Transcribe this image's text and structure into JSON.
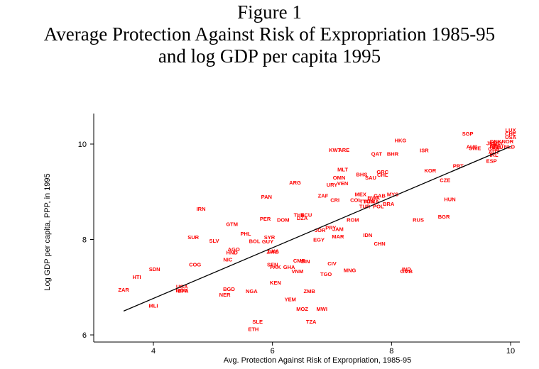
{
  "figure": {
    "label": "Figure 1",
    "title_line1": "Average Protection Against Risk of Expropriation 1985-95",
    "title_line2": "and log GDP per capita 1995"
  },
  "colors": {
    "points": "#ff0000",
    "line": "#000000",
    "axes": "#000000"
  },
  "chart_data": {
    "type": "scatter",
    "title": "Average Protection Against Risk of Expropriation 1985-95 and log GDP per capita 1995",
    "xlabel": "Avg. Protection Against Risk of Expropriation, 1985-95",
    "ylabel": "Log GDP per capita, PPP, in 1995",
    "xlim": [
      3.4,
      10.1
    ],
    "ylim": [
      5.8,
      10.5
    ],
    "xticks": [
      4,
      6,
      8,
      10
    ],
    "yticks": [
      6,
      8,
      10
    ],
    "grid": false,
    "fit_line": {
      "x": [
        3.5,
        10.0
      ],
      "y": [
        6.5,
        9.95
      ]
    },
    "points": [
      {
        "label": "LUX",
        "x": 10.0,
        "y": 10.3
      },
      {
        "label": "CHE",
        "x": 10.0,
        "y": 10.22
      },
      {
        "label": "USA",
        "x": 10.0,
        "y": 10.15
      },
      {
        "label": "NOR",
        "x": 9.95,
        "y": 10.06
      },
      {
        "label": "NLD",
        "x": 9.98,
        "y": 9.95
      },
      {
        "label": "DNK",
        "x": 9.75,
        "y": 10.06
      },
      {
        "label": "JPN",
        "x": 9.68,
        "y": 10.02
      },
      {
        "label": "BEL",
        "x": 9.8,
        "y": 10.02
      },
      {
        "label": "FRA",
        "x": 9.75,
        "y": 9.97
      },
      {
        "label": "DEU",
        "x": 9.78,
        "y": 9.94
      },
      {
        "label": "GBR",
        "x": 9.72,
        "y": 9.9
      },
      {
        "label": "FIN",
        "x": 9.72,
        "y": 9.95
      },
      {
        "label": "AUT",
        "x": 9.72,
        "y": 9.84
      },
      {
        "label": "AUS",
        "x": 9.35,
        "y": 9.95
      },
      {
        "label": "SWE",
        "x": 9.4,
        "y": 9.92
      },
      {
        "label": "SGP",
        "x": 9.28,
        "y": 10.22
      },
      {
        "label": "IRL",
        "x": 9.72,
        "y": 9.78
      },
      {
        "label": "ESP",
        "x": 9.68,
        "y": 9.65
      },
      {
        "label": "PRT",
        "x": 9.12,
        "y": 9.55
      },
      {
        "label": "HKG",
        "x": 8.15,
        "y": 10.08
      },
      {
        "label": "ISR",
        "x": 8.55,
        "y": 9.87
      },
      {
        "label": "KWT",
        "x": 7.05,
        "y": 9.88
      },
      {
        "label": "ARE",
        "x": 7.2,
        "y": 9.88
      },
      {
        "label": "QAT",
        "x": 7.75,
        "y": 9.8
      },
      {
        "label": "BHR",
        "x": 8.02,
        "y": 9.8
      },
      {
        "label": "KOR",
        "x": 8.65,
        "y": 9.45
      },
      {
        "label": "CZE",
        "x": 8.9,
        "y": 9.25
      },
      {
        "label": "MLT",
        "x": 7.18,
        "y": 9.47
      },
      {
        "label": "BHS",
        "x": 7.5,
        "y": 9.37
      },
      {
        "label": "SAU",
        "x": 7.65,
        "y": 9.3
      },
      {
        "label": "GRC",
        "x": 7.85,
        "y": 9.42
      },
      {
        "label": "CHL",
        "x": 7.85,
        "y": 9.36
      },
      {
        "label": "OMN",
        "x": 7.12,
        "y": 9.3
      },
      {
        "label": "URY",
        "x": 7.0,
        "y": 9.15
      },
      {
        "label": "VEN",
        "x": 7.18,
        "y": 9.18
      },
      {
        "label": "ARG",
        "x": 6.38,
        "y": 9.2
      },
      {
        "label": "MEX",
        "x": 7.48,
        "y": 8.95
      },
      {
        "label": "MYS",
        "x": 8.02,
        "y": 8.95
      },
      {
        "label": "GAB",
        "x": 7.8,
        "y": 8.92
      },
      {
        "label": "BWA",
        "x": 7.7,
        "y": 8.88
      },
      {
        "label": "ZAF",
        "x": 6.85,
        "y": 8.92
      },
      {
        "label": "CRI",
        "x": 7.05,
        "y": 8.83
      },
      {
        "label": "COL",
        "x": 7.4,
        "y": 8.83
      },
      {
        "label": "TTO",
        "x": 7.55,
        "y": 8.8
      },
      {
        "label": "TUN",
        "x": 7.62,
        "y": 8.8
      },
      {
        "label": "TRA",
        "x": 7.7,
        "y": 8.8
      },
      {
        "label": "TUR",
        "x": 7.55,
        "y": 8.7
      },
      {
        "label": "POL",
        "x": 7.78,
        "y": 8.7
      },
      {
        "label": "BRA",
        "x": 7.95,
        "y": 8.75
      },
      {
        "label": "HUN",
        "x": 8.98,
        "y": 8.85
      },
      {
        "label": "PAN",
        "x": 5.9,
        "y": 8.9
      },
      {
        "label": "IRN",
        "x": 4.8,
        "y": 8.65
      },
      {
        "label": "RUS",
        "x": 8.45,
        "y": 8.42
      },
      {
        "label": "BGR",
        "x": 8.88,
        "y": 8.48
      },
      {
        "label": "ROM",
        "x": 7.35,
        "y": 8.42
      },
      {
        "label": "THA",
        "x": 6.45,
        "y": 8.52
      },
      {
        "label": "ECU",
        "x": 6.57,
        "y": 8.52
      },
      {
        "label": "DZA",
        "x": 6.5,
        "y": 8.45
      },
      {
        "label": "DOM",
        "x": 6.18,
        "y": 8.42
      },
      {
        "label": "PER",
        "x": 5.88,
        "y": 8.44
      },
      {
        "label": "GTM",
        "x": 5.32,
        "y": 8.33
      },
      {
        "label": "IDN",
        "x": 7.6,
        "y": 8.1
      },
      {
        "label": "CHN",
        "x": 7.8,
        "y": 7.92
      },
      {
        "label": "PHL",
        "x": 5.55,
        "y": 8.13
      },
      {
        "label": "SYR",
        "x": 5.95,
        "y": 8.05
      },
      {
        "label": "JOR",
        "x": 6.8,
        "y": 8.2
      },
      {
        "label": "PRY",
        "x": 6.98,
        "y": 8.25
      },
      {
        "label": "JAM",
        "x": 7.1,
        "y": 8.22
      },
      {
        "label": "MAR",
        "x": 7.1,
        "y": 8.07
      },
      {
        "label": "EGY",
        "x": 6.78,
        "y": 8.0
      },
      {
        "label": "BOL",
        "x": 5.7,
        "y": 7.97
      },
      {
        "label": "GUY",
        "x": 5.92,
        "y": 7.96
      },
      {
        "label": "SUR",
        "x": 4.67,
        "y": 8.05
      },
      {
        "label": "SLV",
        "x": 5.02,
        "y": 7.98
      },
      {
        "label": "AGO",
        "x": 5.35,
        "y": 7.8
      },
      {
        "label": "HND",
        "x": 5.32,
        "y": 7.73
      },
      {
        "label": "ZWE",
        "x": 6.0,
        "y": 7.75
      },
      {
        "label": "LKA",
        "x": 6.02,
        "y": 7.76
      },
      {
        "label": "NIC",
        "x": 5.25,
        "y": 7.58
      },
      {
        "label": "CMR",
        "x": 6.45,
        "y": 7.56
      },
      {
        "label": "GIN",
        "x": 6.55,
        "y": 7.55
      },
      {
        "label": "CIV",
        "x": 7.0,
        "y": 7.5
      },
      {
        "label": "COG",
        "x": 4.7,
        "y": 7.48
      },
      {
        "label": "SEN",
        "x": 6.0,
        "y": 7.48
      },
      {
        "label": "PAK",
        "x": 6.05,
        "y": 7.43
      },
      {
        "label": "GHA",
        "x": 6.28,
        "y": 7.43
      },
      {
        "label": "VNM",
        "x": 6.42,
        "y": 7.34
      },
      {
        "label": "TGO",
        "x": 6.9,
        "y": 7.28
      },
      {
        "label": "MNG",
        "x": 7.3,
        "y": 7.36
      },
      {
        "label": "IND",
        "x": 8.25,
        "y": 7.38
      },
      {
        "label": "GMB",
        "x": 8.25,
        "y": 7.34
      },
      {
        "label": "SDN",
        "x": 4.02,
        "y": 7.38
      },
      {
        "label": "HTI",
        "x": 3.72,
        "y": 7.22
      },
      {
        "label": "KEN",
        "x": 6.05,
        "y": 7.1
      },
      {
        "label": "UGA",
        "x": 4.48,
        "y": 7.02
      },
      {
        "label": "MDG",
        "x": 4.48,
        "y": 6.94
      },
      {
        "label": "BFA",
        "x": 4.5,
        "y": 6.93
      },
      {
        "label": "ZAR",
        "x": 3.5,
        "y": 6.95
      },
      {
        "label": "BGD",
        "x": 5.27,
        "y": 6.97
      },
      {
        "label": "NGA",
        "x": 5.65,
        "y": 6.92
      },
      {
        "label": "NER",
        "x": 5.2,
        "y": 6.85
      },
      {
        "label": "ZMB",
        "x": 6.62,
        "y": 6.92
      },
      {
        "label": "YEM",
        "x": 6.3,
        "y": 6.75
      },
      {
        "label": "MLI",
        "x": 4.0,
        "y": 6.62
      },
      {
        "label": "MOZ",
        "x": 6.5,
        "y": 6.55
      },
      {
        "label": "MWI",
        "x": 6.83,
        "y": 6.55
      },
      {
        "label": "SLE",
        "x": 5.75,
        "y": 6.28
      },
      {
        "label": "TZA",
        "x": 6.65,
        "y": 6.28
      },
      {
        "label": "ETH",
        "x": 5.68,
        "y": 6.13
      }
    ]
  }
}
